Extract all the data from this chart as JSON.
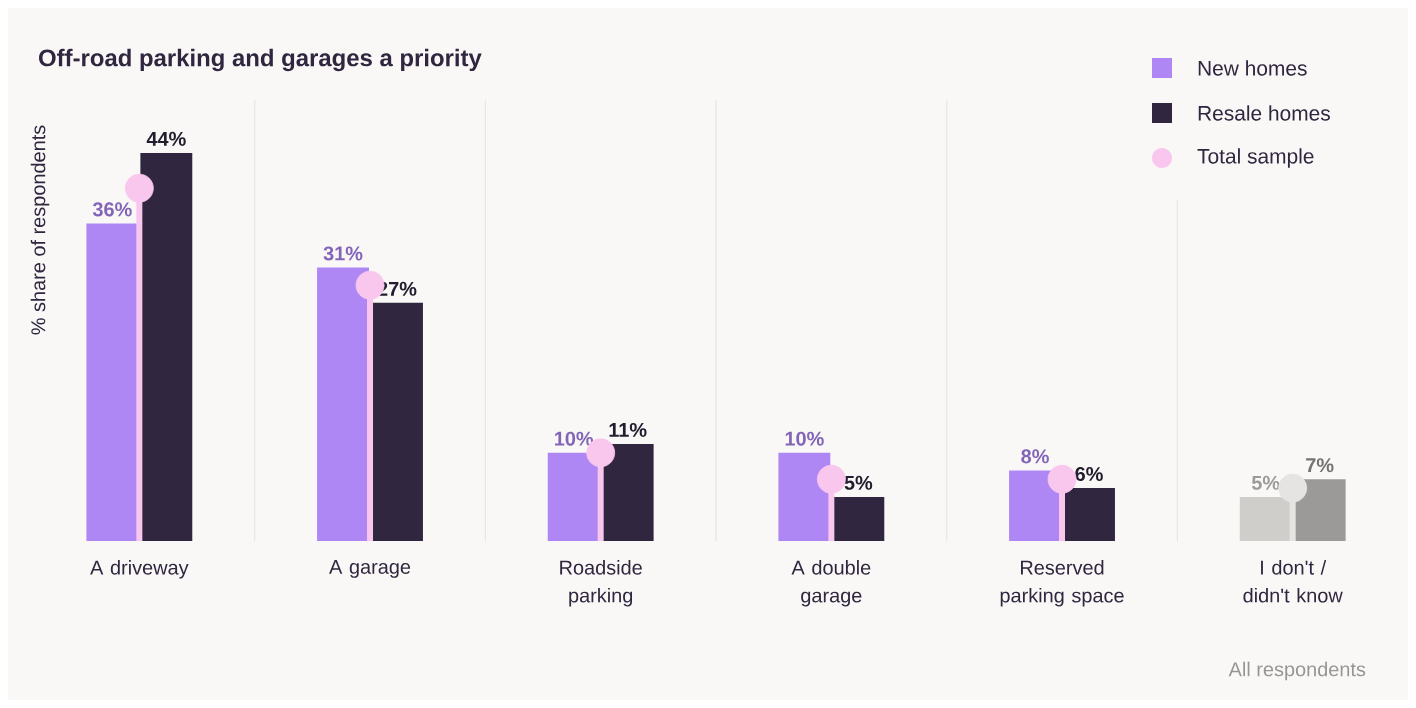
{
  "chart_data": {
    "type": "bar",
    "title": "Off-road parking and garages a priority",
    "ylabel": "% share of respondents",
    "categories": [
      "A driveway",
      "A garage",
      "Roadside parking",
      "A double garage",
      "Reserved parking space",
      "I don't / didn't know"
    ],
    "series": [
      {
        "name": "New homes",
        "colors": [
          "#ae87f5",
          "#ae87f5",
          "#ae87f5",
          "#ae87f5",
          "#ae87f5",
          "#d0cecb"
        ],
        "values": [
          36,
          31,
          10,
          10,
          8,
          5
        ],
        "value_labels": [
          "36%",
          "31%",
          "10%",
          "10%",
          "8%",
          "5%"
        ]
      },
      {
        "name": "Resale homes",
        "colors": [
          "#30263f",
          "#30263f",
          "#30263f",
          "#30263f",
          "#30263f",
          "#9b9a99"
        ],
        "values": [
          44,
          27,
          11,
          5,
          6,
          7
        ],
        "value_labels": [
          "44%",
          "27%",
          "11%",
          "5%",
          "6%",
          "7%"
        ]
      },
      {
        "name": "Total sample",
        "type": "lollipop",
        "marker": "circle",
        "colors": [
          "#f9c6ee",
          "#f9c6ee",
          "#f9c6ee",
          "#f9c6ee",
          "#f9c6ee",
          "#e6e4e2"
        ],
        "values": [
          40,
          29,
          10,
          7,
          7,
          6
        ]
      }
    ],
    "ylim": [
      0,
      50
    ],
    "tick_labels": "x",
    "grid": "x",
    "legend": "top right",
    "annotations": [
      "All respondents"
    ]
  }
}
